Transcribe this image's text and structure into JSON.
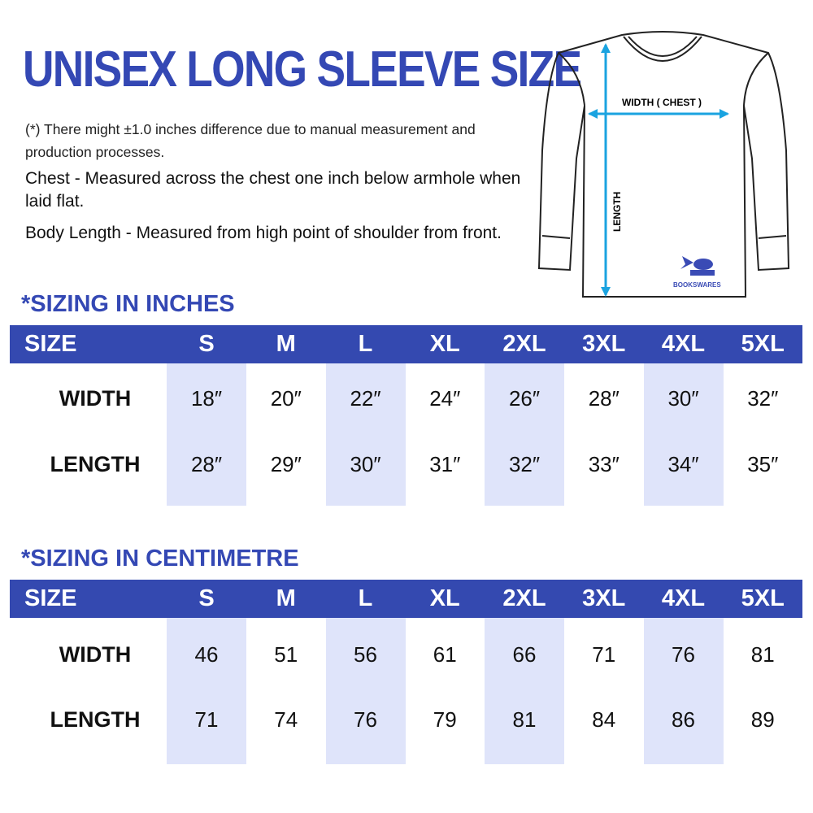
{
  "title": "UNISEX LONG SLEEVE SIZE",
  "note": "(*) There might ±1.0 inches difference due to manual measurement and production processes.",
  "chest_desc": "Chest - Measured across the chest one inch below armhole when laid flat.",
  "length_desc": "Body Length - Measured from high point of shoulder from front.",
  "diagram": {
    "width_label": "WIDTH ( CHEST )",
    "length_label": "LENGTH",
    "logo_text": "BOOKSWARES",
    "arrow_color": "#1aa3e0"
  },
  "colors": {
    "accent": "#3448b4",
    "header_bg": "#3449b0",
    "shade": "#dfe4fa"
  },
  "tables": [
    {
      "title": "*SIZING IN INCHES",
      "size_label": "SIZE",
      "sizes": [
        "S",
        "M",
        "L",
        "XL",
        "2XL",
        "3XL",
        "4XL",
        "5XL"
      ],
      "rows": [
        {
          "label": "WIDTH",
          "values": [
            "18″",
            "20″",
            "22″",
            "24″",
            "26″",
            "28″",
            "30″",
            "32″"
          ]
        },
        {
          "label": "LENGTH",
          "values": [
            "28″",
            "29″",
            "30″",
            "31″",
            "32″",
            "33″",
            "34″",
            "35″"
          ]
        }
      ]
    },
    {
      "title": "*SIZING IN CENTIMETRE",
      "size_label": "SIZE",
      "sizes": [
        "S",
        "M",
        "L",
        "XL",
        "2XL",
        "3XL",
        "4XL",
        "5XL"
      ],
      "rows": [
        {
          "label": "WIDTH",
          "values": [
            "46",
            "51",
            "56",
            "61",
            "66",
            "71",
            "76",
            "81"
          ]
        },
        {
          "label": "LENGTH",
          "values": [
            "71",
            "74",
            "76",
            "79",
            "81",
            "84",
            "86",
            "89"
          ]
        }
      ]
    }
  ]
}
